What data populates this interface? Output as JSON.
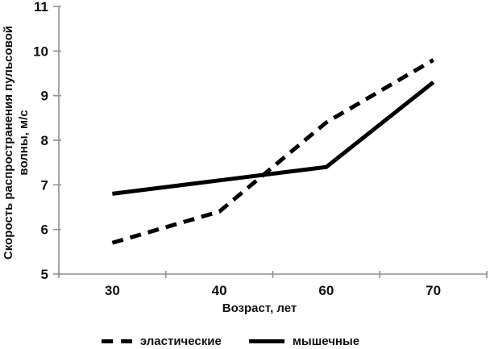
{
  "chart_data": {
    "type": "line",
    "categories": [
      "30",
      "40",
      "60",
      "70"
    ],
    "series": [
      {
        "name": "эластические",
        "style": "dashed",
        "values": [
          5.7,
          6.4,
          8.4,
          9.8
        ]
      },
      {
        "name": "мышечные",
        "style": "solid",
        "values": [
          6.8,
          7.1,
          7.4,
          9.3
        ]
      }
    ],
    "xlabel": "Возраст, лет",
    "ylabel": "Скорость распространения пульсовой волны, м/с",
    "ylabel_lines": [
      "Скорость распространения пульсовой",
      "волны, м/с"
    ],
    "ylim": [
      5,
      11
    ],
    "yticks": [
      5,
      6,
      7,
      8,
      9,
      10,
      11
    ],
    "grid": false,
    "legend_position": "bottom",
    "line_color": "#000000",
    "axis_color": "#8f8f8f",
    "text_color": "#111111"
  }
}
